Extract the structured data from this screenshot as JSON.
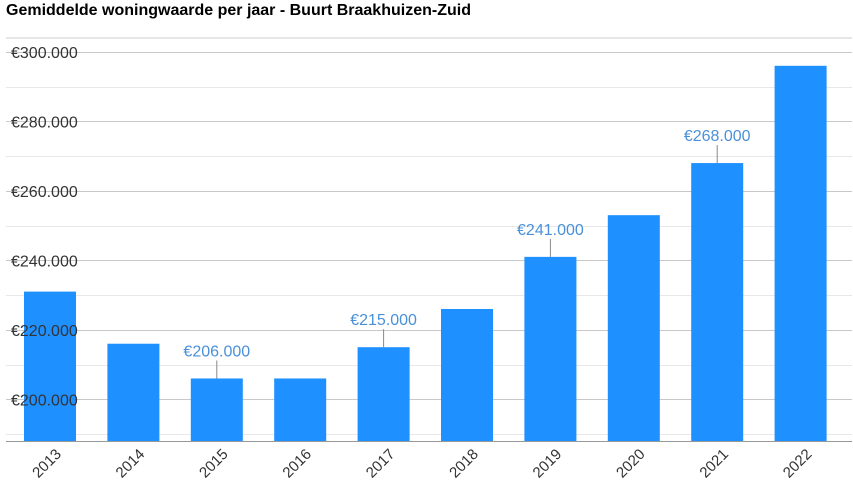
{
  "chart_data": {
    "type": "bar",
    "title": "Gemiddelde woningwaarde per jaar - Buurt Braakhuizen-Zuid",
    "categories": [
      "2013",
      "2014",
      "2015",
      "2016",
      "2017",
      "2018",
      "2019",
      "2020",
      "2021",
      "2022"
    ],
    "values": [
      231000,
      216000,
      206000,
      206000,
      215000,
      226000,
      241000,
      253000,
      268000,
      296000
    ],
    "ylim": [
      188000,
      304000
    ],
    "yticks": [
      200000,
      220000,
      240000,
      260000,
      280000,
      300000
    ],
    "ytick_labels": [
      "€200.000",
      "€220.000",
      "€240.000",
      "€260.000",
      "€280.000",
      "€300.000"
    ],
    "data_labels": [
      {
        "index": 2,
        "text": "€206.000"
      },
      {
        "index": 4,
        "text": "€215.000"
      },
      {
        "index": 6,
        "text": "€241.000"
      },
      {
        "index": 8,
        "text": "€268.000"
      }
    ],
    "bar_color": "#1e90ff",
    "label_color": "#4a90d9",
    "grid": true,
    "xlabel": "",
    "ylabel": ""
  }
}
